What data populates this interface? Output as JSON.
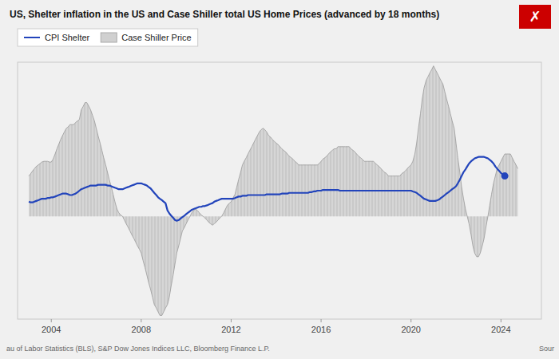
{
  "chart_data": {
    "type": "line",
    "title": "US, Shelter inflation in the US and Case Shiller total US Home Prices (advanced by 18 months)",
    "annotations": [
      "au of Labor Statistics (BLS), S&P Dow Jones Indices LLC, Bloomberg Finance L.P.",
      "Sour",
      "✗"
    ],
    "xlim": [
      2002.5,
      2025.8
    ],
    "xticks": [
      2004,
      2008,
      2012,
      2016,
      2020,
      2024
    ],
    "ylim": [
      -14,
      21
    ],
    "tick_labels": "x",
    "legend": "top-left",
    "series": [
      {
        "name": "CPI Shelter",
        "type": "line",
        "color": "#2244bb",
        "x": [
          2003.0,
          2003.08,
          2003.17,
          2003.25,
          2003.33,
          2003.42,
          2003.5,
          2003.58,
          2003.67,
          2003.75,
          2003.83,
          2003.92,
          2004.0,
          2004.08,
          2004.17,
          2004.25,
          2004.33,
          2004.42,
          2004.5,
          2004.58,
          2004.67,
          2004.75,
          2004.83,
          2004.92,
          2005.0,
          2005.08,
          2005.17,
          2005.25,
          2005.33,
          2005.42,
          2005.5,
          2005.58,
          2005.67,
          2005.75,
          2005.83,
          2005.92,
          2006.0,
          2006.08,
          2006.17,
          2006.25,
          2006.33,
          2006.42,
          2006.5,
          2006.58,
          2006.67,
          2006.75,
          2006.83,
          2006.92,
          2007.0,
          2007.08,
          2007.17,
          2007.25,
          2007.33,
          2007.42,
          2007.5,
          2007.58,
          2007.67,
          2007.75,
          2007.83,
          2007.92,
          2008.0,
          2008.08,
          2008.17,
          2008.25,
          2008.33,
          2008.42,
          2008.5,
          2008.58,
          2008.67,
          2008.75,
          2008.83,
          2008.92,
          2009.0,
          2009.08,
          2009.17,
          2009.25,
          2009.33,
          2009.42,
          2009.5,
          2009.58,
          2009.67,
          2009.75,
          2009.83,
          2009.92,
          2010.0,
          2010.08,
          2010.17,
          2010.25,
          2010.33,
          2010.42,
          2010.5,
          2010.58,
          2010.67,
          2010.75,
          2010.83,
          2010.92,
          2011.0,
          2011.08,
          2011.17,
          2011.25,
          2011.33,
          2011.42,
          2011.5,
          2011.58,
          2011.67,
          2011.75,
          2011.83,
          2011.92,
          2012.0,
          2012.08,
          2012.17,
          2012.25,
          2012.33,
          2012.42,
          2012.5,
          2012.58,
          2012.67,
          2012.75,
          2012.83,
          2012.92,
          2013.0,
          2013.08,
          2013.17,
          2013.25,
          2013.33,
          2013.42,
          2013.5,
          2013.58,
          2013.67,
          2013.75,
          2013.83,
          2013.92,
          2014.0,
          2014.08,
          2014.17,
          2014.25,
          2014.33,
          2014.42,
          2014.5,
          2014.58,
          2014.67,
          2014.75,
          2014.83,
          2014.92,
          2015.0,
          2015.08,
          2015.17,
          2015.25,
          2015.33,
          2015.42,
          2015.5,
          2015.58,
          2015.67,
          2015.75,
          2015.83,
          2015.92,
          2016.0,
          2016.08,
          2016.17,
          2016.25,
          2016.33,
          2016.42,
          2016.5,
          2016.58,
          2016.67,
          2016.75,
          2016.83,
          2016.92,
          2017.0,
          2017.08,
          2017.17,
          2017.25,
          2017.33,
          2017.42,
          2017.5,
          2017.58,
          2017.67,
          2017.75,
          2017.83,
          2017.92,
          2018.0,
          2018.08,
          2018.17,
          2018.25,
          2018.33,
          2018.42,
          2018.5,
          2018.58,
          2018.67,
          2018.75,
          2018.83,
          2018.92,
          2019.0,
          2019.08,
          2019.17,
          2019.25,
          2019.33,
          2019.42,
          2019.5,
          2019.58,
          2019.67,
          2019.75,
          2019.83,
          2019.92,
          2020.0,
          2020.08,
          2020.17,
          2020.25,
          2020.33,
          2020.42,
          2020.5,
          2020.58,
          2020.67,
          2020.75,
          2020.83,
          2020.92,
          2021.0,
          2021.08,
          2021.17,
          2021.25,
          2021.33,
          2021.42,
          2021.5,
          2021.58,
          2021.67,
          2021.75,
          2021.83,
          2021.92,
          2022.0,
          2022.08,
          2022.17,
          2022.25,
          2022.33,
          2022.42,
          2022.5,
          2022.58,
          2022.67,
          2022.75,
          2022.83,
          2022.92,
          2023.0,
          2023.08,
          2023.17,
          2023.25,
          2023.33,
          2023.42,
          2023.5,
          2023.58,
          2023.67,
          2023.75,
          2023.83,
          2023.92,
          2024.0,
          2024.08,
          2024.17,
          2024.25
        ],
        "values": [
          2.0,
          1.9,
          1.9,
          2.0,
          2.1,
          2.2,
          2.3,
          2.4,
          2.4,
          2.4,
          2.5,
          2.5,
          2.6,
          2.6,
          2.7,
          2.8,
          2.9,
          3.0,
          3.1,
          3.1,
          3.1,
          3.0,
          2.9,
          2.9,
          3.0,
          3.1,
          3.3,
          3.5,
          3.7,
          3.8,
          3.9,
          4.0,
          4.1,
          4.2,
          4.2,
          4.2,
          4.2,
          4.3,
          4.3,
          4.3,
          4.3,
          4.3,
          4.2,
          4.2,
          4.1,
          4.0,
          3.9,
          3.8,
          3.7,
          3.7,
          3.7,
          3.8,
          3.9,
          4.0,
          4.1,
          4.2,
          4.3,
          4.4,
          4.5,
          4.5,
          4.5,
          4.4,
          4.3,
          4.2,
          4.0,
          3.8,
          3.5,
          3.2,
          2.9,
          2.6,
          2.4,
          2.2,
          2.0,
          1.8,
          0.8,
          0.4,
          0.1,
          -0.2,
          -0.5,
          -0.6,
          -0.5,
          -0.3,
          -0.1,
          0.1,
          0.3,
          0.5,
          0.7,
          0.9,
          1.0,
          1.1,
          1.2,
          1.3,
          1.3,
          1.4,
          1.4,
          1.5,
          1.6,
          1.7,
          1.8,
          2.0,
          2.1,
          2.2,
          2.3,
          2.4,
          2.4,
          2.4,
          2.4,
          2.4,
          2.4,
          2.4,
          2.5,
          2.6,
          2.7,
          2.7,
          2.8,
          2.8,
          2.8,
          2.9,
          2.9,
          2.9,
          2.9,
          2.9,
          2.9,
          2.9,
          2.9,
          2.9,
          2.9,
          3.0,
          3.0,
          3.0,
          3.0,
          3.0,
          3.0,
          3.0,
          3.0,
          3.1,
          3.1,
          3.1,
          3.1,
          3.2,
          3.2,
          3.2,
          3.2,
          3.2,
          3.2,
          3.2,
          3.2,
          3.2,
          3.2,
          3.2,
          3.3,
          3.3,
          3.4,
          3.4,
          3.5,
          3.5,
          3.5,
          3.6,
          3.6,
          3.6,
          3.6,
          3.6,
          3.6,
          3.6,
          3.6,
          3.6,
          3.5,
          3.5,
          3.5,
          3.5,
          3.5,
          3.5,
          3.5,
          3.5,
          3.5,
          3.5,
          3.5,
          3.5,
          3.5,
          3.5,
          3.5,
          3.5,
          3.5,
          3.5,
          3.5,
          3.5,
          3.5,
          3.5,
          3.5,
          3.5,
          3.5,
          3.5,
          3.5,
          3.5,
          3.5,
          3.5,
          3.5,
          3.5,
          3.5,
          3.5,
          3.5,
          3.5,
          3.5,
          3.5,
          3.5,
          3.4,
          3.3,
          3.2,
          3.0,
          2.8,
          2.6,
          2.4,
          2.3,
          2.2,
          2.1,
          2.1,
          2.1,
          2.1,
          2.2,
          2.3,
          2.5,
          2.7,
          2.9,
          3.1,
          3.3,
          3.5,
          3.7,
          3.9,
          4.1,
          4.5,
          5.0,
          5.5,
          6.0,
          6.4,
          6.8,
          7.2,
          7.5,
          7.7,
          7.9,
          8.0,
          8.1,
          8.1,
          8.1,
          8.1,
          8.0,
          7.9,
          7.7,
          7.5,
          7.2,
          6.8,
          6.5,
          6.2,
          5.9,
          5.7,
          5.5,
          5.3
        ]
      },
      {
        "name": "Case Shiller Price",
        "type": "area",
        "color": "#d0d0d0",
        "x": [
          2003.0,
          2003.08,
          2003.17,
          2003.25,
          2003.33,
          2003.42,
          2003.5,
          2003.58,
          2003.67,
          2003.75,
          2003.83,
          2003.92,
          2004.0,
          2004.08,
          2004.17,
          2004.25,
          2004.33,
          2004.42,
          2004.5,
          2004.58,
          2004.67,
          2004.75,
          2004.83,
          2004.92,
          2005.0,
          2005.08,
          2005.17,
          2005.25,
          2005.33,
          2005.42,
          2005.5,
          2005.58,
          2005.67,
          2005.75,
          2005.83,
          2005.92,
          2006.0,
          2006.08,
          2006.17,
          2006.25,
          2006.33,
          2006.42,
          2006.5,
          2006.58,
          2006.67,
          2006.75,
          2006.83,
          2006.92,
          2007.0,
          2007.08,
          2007.17,
          2007.25,
          2007.33,
          2007.42,
          2007.5,
          2007.58,
          2007.67,
          2007.75,
          2007.83,
          2007.92,
          2008.0,
          2008.08,
          2008.17,
          2008.25,
          2008.33,
          2008.42,
          2008.5,
          2008.58,
          2008.67,
          2008.75,
          2008.83,
          2008.92,
          2009.0,
          2009.08,
          2009.17,
          2009.25,
          2009.33,
          2009.42,
          2009.5,
          2009.58,
          2009.67,
          2009.75,
          2009.83,
          2009.92,
          2010.0,
          2010.08,
          2010.17,
          2010.25,
          2010.33,
          2010.42,
          2010.5,
          2010.58,
          2010.67,
          2010.75,
          2010.83,
          2010.92,
          2011.0,
          2011.08,
          2011.17,
          2011.25,
          2011.33,
          2011.42,
          2011.5,
          2011.58,
          2011.67,
          2011.75,
          2011.83,
          2011.92,
          2012.0,
          2012.08,
          2012.17,
          2012.25,
          2012.33,
          2012.42,
          2012.5,
          2012.58,
          2012.67,
          2012.75,
          2012.83,
          2012.92,
          2013.0,
          2013.08,
          2013.17,
          2013.25,
          2013.33,
          2013.42,
          2013.5,
          2013.58,
          2013.67,
          2013.75,
          2013.83,
          2013.92,
          2014.0,
          2014.08,
          2014.17,
          2014.25,
          2014.33,
          2014.42,
          2014.5,
          2014.58,
          2014.67,
          2014.75,
          2014.83,
          2014.92,
          2015.0,
          2015.08,
          2015.17,
          2015.25,
          2015.33,
          2015.42,
          2015.5,
          2015.58,
          2015.67,
          2015.75,
          2015.83,
          2015.92,
          2016.0,
          2016.08,
          2016.17,
          2016.25,
          2016.33,
          2016.42,
          2016.5,
          2016.58,
          2016.67,
          2016.75,
          2016.83,
          2016.92,
          2017.0,
          2017.08,
          2017.17,
          2017.25,
          2017.33,
          2017.42,
          2017.5,
          2017.58,
          2017.67,
          2017.75,
          2017.83,
          2017.92,
          2018.0,
          2018.08,
          2018.17,
          2018.25,
          2018.33,
          2018.42,
          2018.5,
          2018.58,
          2018.67,
          2018.75,
          2018.83,
          2018.92,
          2019.0,
          2019.08,
          2019.17,
          2019.25,
          2019.33,
          2019.42,
          2019.5,
          2019.58,
          2019.67,
          2019.75,
          2019.83,
          2019.92,
          2020.0,
          2020.08,
          2020.17,
          2020.25,
          2020.33,
          2020.42,
          2020.5,
          2020.58,
          2020.67,
          2020.75,
          2020.83,
          2020.92,
          2021.0,
          2021.08,
          2021.17,
          2021.25,
          2021.33,
          2021.42,
          2021.5,
          2021.58,
          2021.67,
          2021.75,
          2021.83,
          2021.92,
          2022.0,
          2022.08,
          2022.17,
          2022.25,
          2022.33,
          2022.42,
          2022.5,
          2022.58,
          2022.67,
          2022.75,
          2022.83,
          2022.92,
          2023.0,
          2023.08,
          2023.17,
          2023.25,
          2023.33,
          2023.42,
          2023.5,
          2023.58,
          2023.67,
          2023.75,
          2023.83,
          2023.92,
          2024.0,
          2024.08,
          2024.17,
          2024.25,
          2024.33,
          2024.42,
          2024.5,
          2024.58,
          2024.67,
          2024.75
        ],
        "values": [
          5.5,
          5.8,
          6.2,
          6.5,
          6.8,
          7.0,
          7.2,
          7.4,
          7.5,
          7.5,
          7.5,
          7.4,
          7.4,
          7.8,
          8.5,
          9.2,
          9.8,
          10.5,
          11.0,
          11.5,
          12.0,
          12.2,
          12.5,
          12.5,
          12.5,
          12.8,
          13.0,
          13.2,
          14.5,
          15.0,
          15.5,
          15.5,
          15.0,
          14.5,
          13.8,
          13.0,
          12.0,
          11.0,
          10.0,
          9.0,
          8.0,
          7.0,
          6.0,
          5.0,
          4.0,
          3.0,
          2.0,
          1.0,
          0.5,
          0.2,
          0.0,
          -0.5,
          -1.0,
          -1.5,
          -2.0,
          -2.5,
          -3.0,
          -3.5,
          -4.0,
          -4.5,
          -5.0,
          -6.0,
          -7.0,
          -8.0,
          -9.0,
          -10.0,
          -11.0,
          -12.0,
          -12.5,
          -13.0,
          -13.5,
          -13.5,
          -13.0,
          -12.5,
          -12.0,
          -11.0,
          -9.5,
          -8.0,
          -6.5,
          -5.0,
          -4.0,
          -3.0,
          -2.0,
          -1.5,
          -1.0,
          -0.5,
          0.0,
          0.5,
          0.8,
          1.0,
          0.8,
          0.5,
          0.2,
          0.0,
          -0.2,
          -0.5,
          -0.8,
          -1.0,
          -1.2,
          -1.0,
          -0.8,
          -0.5,
          -0.2,
          0.0,
          0.5,
          1.0,
          1.5,
          1.8,
          2.0,
          2.5,
          3.0,
          4.0,
          5.0,
          6.0,
          7.0,
          7.5,
          8.0,
          8.5,
          9.0,
          9.5,
          10.0,
          10.5,
          11.0,
          11.5,
          11.8,
          12.0,
          11.8,
          11.5,
          11.0,
          10.8,
          10.5,
          10.2,
          10.0,
          9.8,
          9.5,
          9.2,
          9.0,
          8.8,
          8.5,
          8.2,
          8.0,
          7.8,
          7.5,
          7.3,
          7.0,
          7.0,
          7.0,
          7.0,
          7.0,
          7.0,
          7.0,
          7.0,
          7.0,
          7.0,
          7.0,
          7.2,
          7.5,
          7.8,
          8.0,
          8.2,
          8.5,
          8.8,
          9.0,
          9.2,
          9.2,
          9.5,
          9.5,
          9.5,
          9.5,
          9.5,
          9.5,
          9.5,
          9.2,
          9.0,
          8.8,
          8.5,
          8.2,
          8.0,
          7.8,
          7.5,
          7.5,
          7.5,
          7.5,
          7.5,
          7.5,
          7.2,
          7.0,
          6.8,
          6.5,
          6.2,
          6.0,
          5.8,
          5.5,
          5.5,
          5.5,
          5.5,
          5.5,
          5.5,
          5.5,
          5.8,
          6.0,
          6.2,
          6.5,
          6.8,
          7.0,
          7.5,
          8.5,
          10.0,
          12.0,
          14.0,
          16.0,
          17.5,
          18.5,
          19.0,
          19.5,
          20.0,
          20.5,
          20.0,
          19.5,
          19.0,
          18.5,
          18.0,
          17.0,
          16.0,
          15.0,
          14.0,
          13.0,
          12.0,
          10.0,
          8.0,
          6.0,
          4.0,
          2.5,
          1.0,
          0.0,
          -1.0,
          -2.5,
          -4.0,
          -5.0,
          -5.5,
          -5.5,
          -5.0,
          -4.0,
          -3.0,
          -1.5,
          0.0,
          1.5,
          3.0,
          4.5,
          5.5,
          6.5,
          7.0,
          7.5,
          8.0,
          8.5,
          8.5,
          8.5,
          8.5,
          8.0,
          7.5,
          7.0,
          6.5
        ]
      },
      {
        "type": "scatter",
        "color": "#2244bb",
        "x": [
          2024.17
        ],
        "values": [
          5.5
        ]
      }
    ]
  }
}
